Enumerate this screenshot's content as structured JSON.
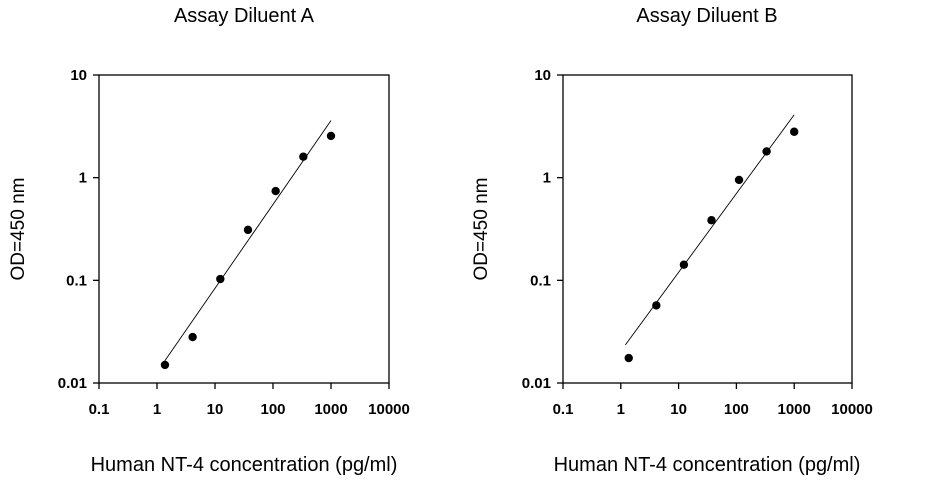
{
  "chart_data": [
    {
      "type": "scatter",
      "title": "Assay Diluent A",
      "xlabel": "Human NT-4  concentration (pg/ml)",
      "ylabel": "OD=450 nm",
      "xscale": "log",
      "yscale": "log",
      "xlim": [
        0.1,
        10000
      ],
      "ylim": [
        0.01,
        10
      ],
      "xticks": [
        "0.1",
        "1",
        "10",
        "100",
        "1000",
        "10000"
      ],
      "yticks": [
        "0.01",
        "0.1",
        "1",
        "10"
      ],
      "grid": false,
      "legend": "none",
      "series": [
        {
          "x": [
            1.372,
            4.115,
            12.35,
            37.04,
            111.1,
            333.3,
            1000
          ],
          "y": [
            0.015,
            0.028,
            0.103,
            0.31,
            0.74,
            1.6,
            2.55
          ]
        }
      ],
      "fit_line": {
        "x": [
          1.2,
          1000
        ],
        "y": [
          0.0148,
          3.6
        ]
      }
    },
    {
      "type": "scatter",
      "title": "Assay Diluent B",
      "xlabel": "Human NT-4  concentration (pg/ml)",
      "ylabel": "OD=450 nm",
      "xscale": "log",
      "yscale": "log",
      "xlim": [
        0.1,
        10000
      ],
      "ylim": [
        0.01,
        10
      ],
      "xticks": [
        "0.1",
        "1",
        "10",
        "100",
        "1000",
        "10000"
      ],
      "yticks": [
        "0.01",
        "0.1",
        "1",
        "10"
      ],
      "grid": false,
      "legend": "none",
      "series": [
        {
          "x": [
            1.372,
            4.115,
            12.35,
            37.04,
            111.1,
            333.3,
            1000
          ],
          "y": [
            0.0175,
            0.057,
            0.142,
            0.385,
            0.95,
            1.8,
            2.8
          ]
        }
      ],
      "fit_line": {
        "x": [
          1.2,
          1000
        ],
        "y": [
          0.0235,
          4.1
        ]
      }
    }
  ]
}
